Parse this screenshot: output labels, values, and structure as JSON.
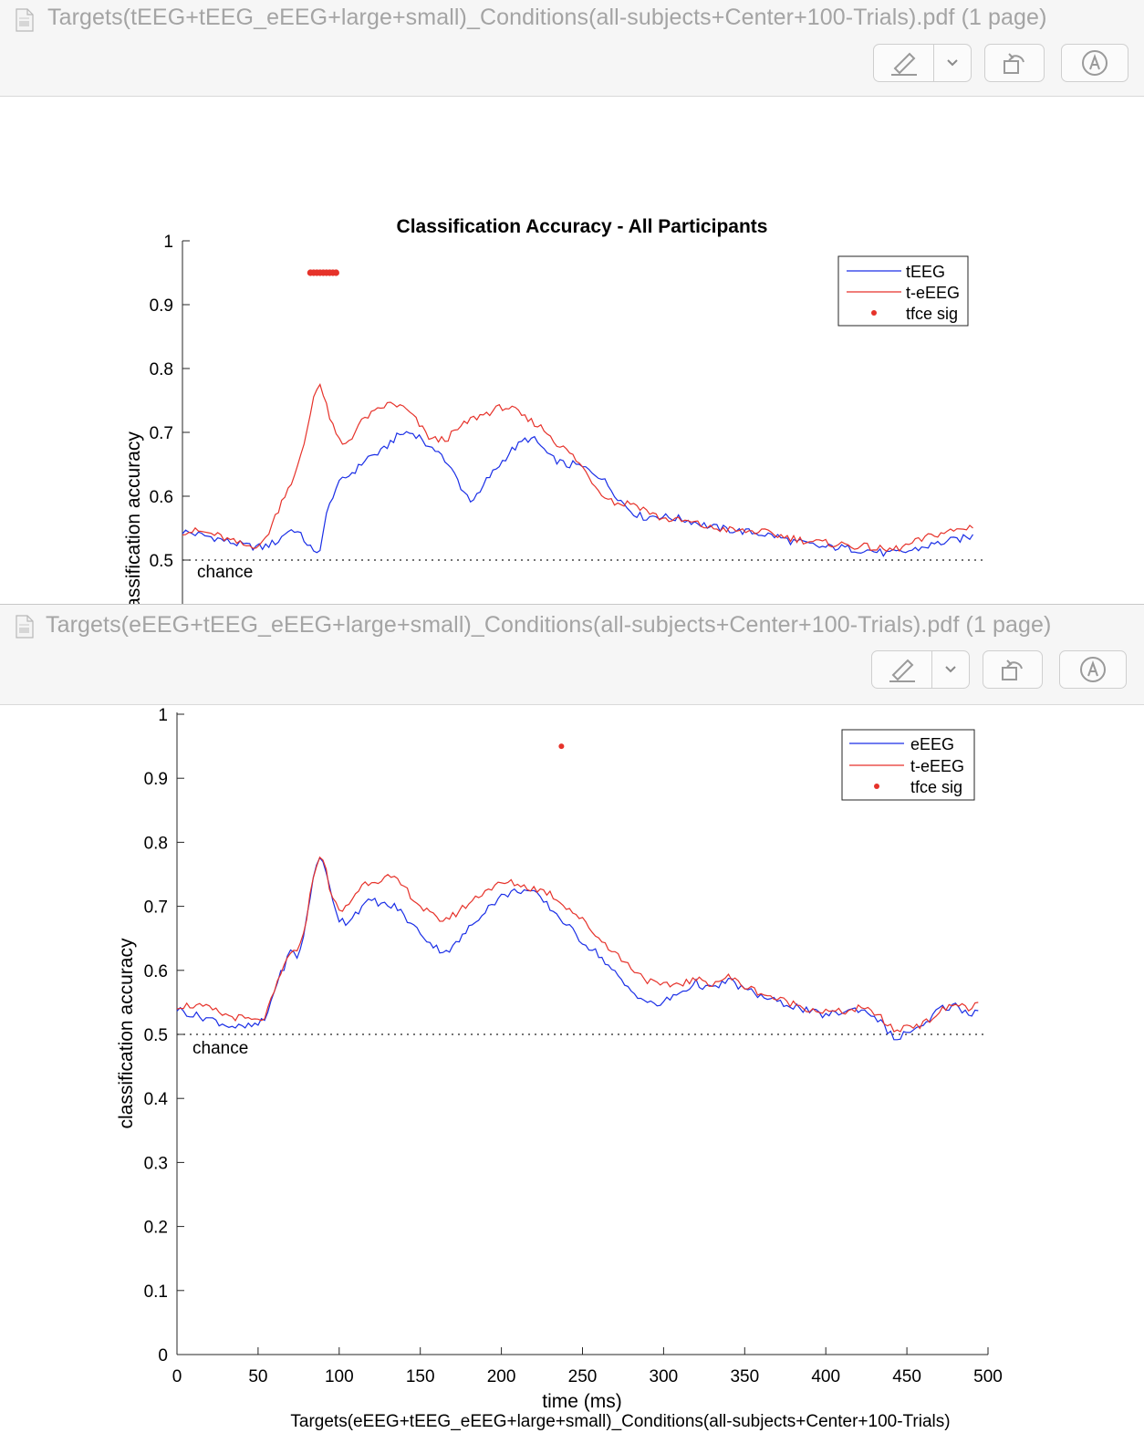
{
  "windows": [
    {
      "title": "Targets(tEEG+tEEG_eEEG+large+small)_Conditions(all-subjects+Center+100-Trials).pdf (1 page)"
    },
    {
      "title": "Targets(eEEG+tEEG_eEEG+large+small)_Conditions(all-subjects+Center+100-Trials).pdf (1 page)"
    }
  ],
  "toolbar_icons": [
    "markup-pen-icon",
    "chevron-down-icon",
    "rotate-icon",
    "annotate-icon"
  ],
  "chart_data": [
    {
      "type": "line",
      "title": "Classification Accuracy - All Participants",
      "ylabel": "classification accuracy",
      "xlabel": "",
      "ylim": [
        0,
        1
      ],
      "y_visible_range": [
        0.42,
        1
      ],
      "xlim": [
        0,
        500
      ],
      "yticks": [
        "0.5",
        "0.6",
        "0.7",
        "0.8",
        "0.9",
        "1"
      ],
      "grid": false,
      "legend_position": "top-right",
      "chance_label": "chance",
      "chance_level": 0.5,
      "legend": [
        "tEEG",
        "t-eEEG",
        "tfce sig"
      ],
      "colors": {
        "blue": "#1a2ee6",
        "red": "#e6322a"
      },
      "series": [
        {
          "name": "tEEG",
          "color": "#1a2ee6",
          "x": [
            0,
            10,
            20,
            30,
            40,
            50,
            55,
            60,
            65,
            70,
            75,
            80,
            83,
            86,
            90,
            95,
            100,
            105,
            110,
            115,
            120,
            125,
            130,
            135,
            140,
            145,
            150,
            155,
            160,
            165,
            170,
            175,
            180,
            185,
            190,
            195,
            200,
            205,
            210,
            215,
            220,
            225,
            230,
            235,
            240,
            245,
            250,
            255,
            260,
            265,
            270,
            275,
            280,
            285,
            290,
            295,
            300,
            310,
            320,
            330,
            340,
            350,
            360,
            370,
            380,
            390,
            400,
            410,
            420,
            430,
            440,
            450,
            460,
            470,
            480,
            490,
            495
          ],
          "y": [
            0.545,
            0.54,
            0.535,
            0.528,
            0.522,
            0.52,
            0.525,
            0.53,
            0.545,
            0.548,
            0.535,
            0.52,
            0.505,
            0.52,
            0.57,
            0.61,
            0.625,
            0.635,
            0.645,
            0.66,
            0.665,
            0.67,
            0.685,
            0.695,
            0.7,
            0.698,
            0.69,
            0.67,
            0.675,
            0.65,
            0.635,
            0.61,
            0.595,
            0.6,
            0.625,
            0.64,
            0.655,
            0.67,
            0.68,
            0.69,
            0.688,
            0.676,
            0.66,
            0.655,
            0.648,
            0.65,
            0.645,
            0.64,
            0.633,
            0.62,
            0.605,
            0.59,
            0.578,
            0.57,
            0.566,
            0.57,
            0.568,
            0.565,
            0.56,
            0.552,
            0.548,
            0.545,
            0.542,
            0.538,
            0.53,
            0.525,
            0.52,
            0.52,
            0.517,
            0.515,
            0.51,
            0.512,
            0.518,
            0.525,
            0.53,
            0.535,
            0.538
          ]
        },
        {
          "name": "t-eEEG",
          "color": "#e6322a",
          "x": [
            0,
            10,
            20,
            30,
            40,
            50,
            55,
            60,
            65,
            70,
            75,
            80,
            83,
            86,
            90,
            95,
            100,
            105,
            110,
            115,
            120,
            125,
            130,
            135,
            140,
            145,
            150,
            155,
            160,
            165,
            170,
            175,
            180,
            185,
            190,
            195,
            200,
            205,
            210,
            215,
            220,
            225,
            230,
            235,
            240,
            245,
            250,
            255,
            260,
            265,
            270,
            275,
            280,
            285,
            290,
            295,
            300,
            310,
            320,
            330,
            340,
            350,
            360,
            370,
            380,
            390,
            400,
            410,
            420,
            430,
            440,
            450,
            460,
            470,
            480,
            490,
            495
          ],
          "y": [
            0.545,
            0.545,
            0.54,
            0.53,
            0.522,
            0.525,
            0.55,
            0.58,
            0.61,
            0.63,
            0.67,
            0.73,
            0.77,
            0.775,
            0.74,
            0.7,
            0.68,
            0.69,
            0.71,
            0.725,
            0.73,
            0.74,
            0.745,
            0.742,
            0.735,
            0.722,
            0.705,
            0.69,
            0.688,
            0.69,
            0.7,
            0.71,
            0.72,
            0.725,
            0.73,
            0.735,
            0.74,
            0.738,
            0.73,
            0.72,
            0.715,
            0.706,
            0.695,
            0.68,
            0.672,
            0.66,
            0.645,
            0.628,
            0.61,
            0.6,
            0.59,
            0.588,
            0.59,
            0.585,
            0.578,
            0.57,
            0.565,
            0.562,
            0.558,
            0.55,
            0.548,
            0.545,
            0.545,
            0.54,
            0.535,
            0.53,
            0.527,
            0.525,
            0.522,
            0.52,
            0.515,
            0.52,
            0.53,
            0.54,
            0.545,
            0.55,
            0.555
          ]
        },
        {
          "name": "tfce sig",
          "color": "#e6322a",
          "type": "scatter",
          "y": 0.95,
          "x": [
            80,
            82,
            84,
            86,
            88,
            90,
            92,
            94,
            96
          ]
        }
      ]
    },
    {
      "type": "line",
      "title": "",
      "ylabel": "classification accuracy",
      "xlabel": "time (ms)",
      "caption": "Targets(eEEG+tEEG_eEEG+large+small)_Conditions(all-subjects+Center+100-Trials)",
      "ylim": [
        0,
        1
      ],
      "xlim": [
        0,
        500
      ],
      "xticks": [
        "0",
        "50",
        "100",
        "150",
        "200",
        "250",
        "300",
        "350",
        "400",
        "450",
        "500"
      ],
      "yticks": [
        "0",
        "0.1",
        "0.2",
        "0.3",
        "0.4",
        "0.5",
        "0.6",
        "0.7",
        "0.8",
        "0.9",
        "1"
      ],
      "grid": false,
      "legend_position": "top-right",
      "chance_label": "chance",
      "chance_level": 0.5,
      "legend": [
        "eEEG",
        "t-eEEG",
        "tfce sig"
      ],
      "series": [
        {
          "name": "eEEG",
          "color": "#1a2ee6",
          "x": [
            0,
            10,
            20,
            30,
            40,
            50,
            55,
            60,
            65,
            70,
            75,
            80,
            85,
            88,
            92,
            95,
            100,
            105,
            110,
            115,
            120,
            125,
            130,
            135,
            140,
            145,
            150,
            155,
            160,
            165,
            170,
            175,
            180,
            185,
            190,
            195,
            200,
            205,
            210,
            215,
            220,
            225,
            230,
            235,
            240,
            245,
            250,
            255,
            260,
            265,
            270,
            275,
            280,
            285,
            290,
            295,
            300,
            310,
            320,
            330,
            340,
            350,
            360,
            370,
            380,
            390,
            400,
            410,
            420,
            430,
            440,
            445,
            450,
            460,
            470,
            480,
            490,
            495
          ],
          "y": [
            0.54,
            0.53,
            0.525,
            0.515,
            0.51,
            0.515,
            0.525,
            0.57,
            0.6,
            0.63,
            0.62,
            0.68,
            0.76,
            0.78,
            0.75,
            0.72,
            0.68,
            0.675,
            0.69,
            0.7,
            0.71,
            0.705,
            0.7,
            0.7,
            0.685,
            0.67,
            0.66,
            0.645,
            0.635,
            0.63,
            0.635,
            0.65,
            0.665,
            0.68,
            0.695,
            0.705,
            0.715,
            0.72,
            0.725,
            0.725,
            0.72,
            0.71,
            0.698,
            0.685,
            0.672,
            0.658,
            0.645,
            0.635,
            0.625,
            0.61,
            0.595,
            0.58,
            0.568,
            0.56,
            0.55,
            0.545,
            0.55,
            0.565,
            0.58,
            0.57,
            0.585,
            0.57,
            0.56,
            0.55,
            0.545,
            0.535,
            0.53,
            0.535,
            0.54,
            0.53,
            0.5,
            0.49,
            0.505,
            0.51,
            0.54,
            0.545,
            0.53,
            0.545
          ]
        },
        {
          "name": "t-eEEG",
          "color": "#e6322a",
          "x": [
            0,
            10,
            20,
            30,
            40,
            50,
            55,
            60,
            65,
            70,
            75,
            80,
            85,
            88,
            92,
            95,
            100,
            105,
            110,
            115,
            120,
            125,
            130,
            135,
            140,
            145,
            150,
            155,
            160,
            165,
            170,
            175,
            180,
            185,
            190,
            195,
            200,
            205,
            210,
            215,
            220,
            225,
            230,
            235,
            240,
            245,
            250,
            255,
            260,
            265,
            270,
            275,
            280,
            285,
            290,
            295,
            300,
            310,
            320,
            330,
            340,
            350,
            360,
            370,
            380,
            390,
            400,
            410,
            420,
            430,
            440,
            445,
            450,
            460,
            470,
            480,
            490,
            495
          ],
          "y": [
            0.545,
            0.545,
            0.54,
            0.53,
            0.525,
            0.52,
            0.53,
            0.565,
            0.6,
            0.63,
            0.625,
            0.685,
            0.76,
            0.78,
            0.755,
            0.72,
            0.69,
            0.7,
            0.72,
            0.735,
            0.74,
            0.742,
            0.745,
            0.74,
            0.73,
            0.715,
            0.7,
            0.69,
            0.68,
            0.68,
            0.685,
            0.695,
            0.705,
            0.715,
            0.725,
            0.73,
            0.735,
            0.737,
            0.735,
            0.73,
            0.728,
            0.725,
            0.72,
            0.71,
            0.7,
            0.69,
            0.678,
            0.665,
            0.65,
            0.64,
            0.628,
            0.615,
            0.605,
            0.595,
            0.585,
            0.578,
            0.575,
            0.58,
            0.585,
            0.58,
            0.59,
            0.575,
            0.565,
            0.555,
            0.548,
            0.54,
            0.535,
            0.535,
            0.54,
            0.535,
            0.51,
            0.505,
            0.515,
            0.515,
            0.535,
            0.548,
            0.54,
            0.55
          ]
        },
        {
          "name": "tfce sig",
          "color": "#e6322a",
          "type": "scatter",
          "y": 0.95,
          "x": [
            237
          ]
        }
      ]
    }
  ]
}
